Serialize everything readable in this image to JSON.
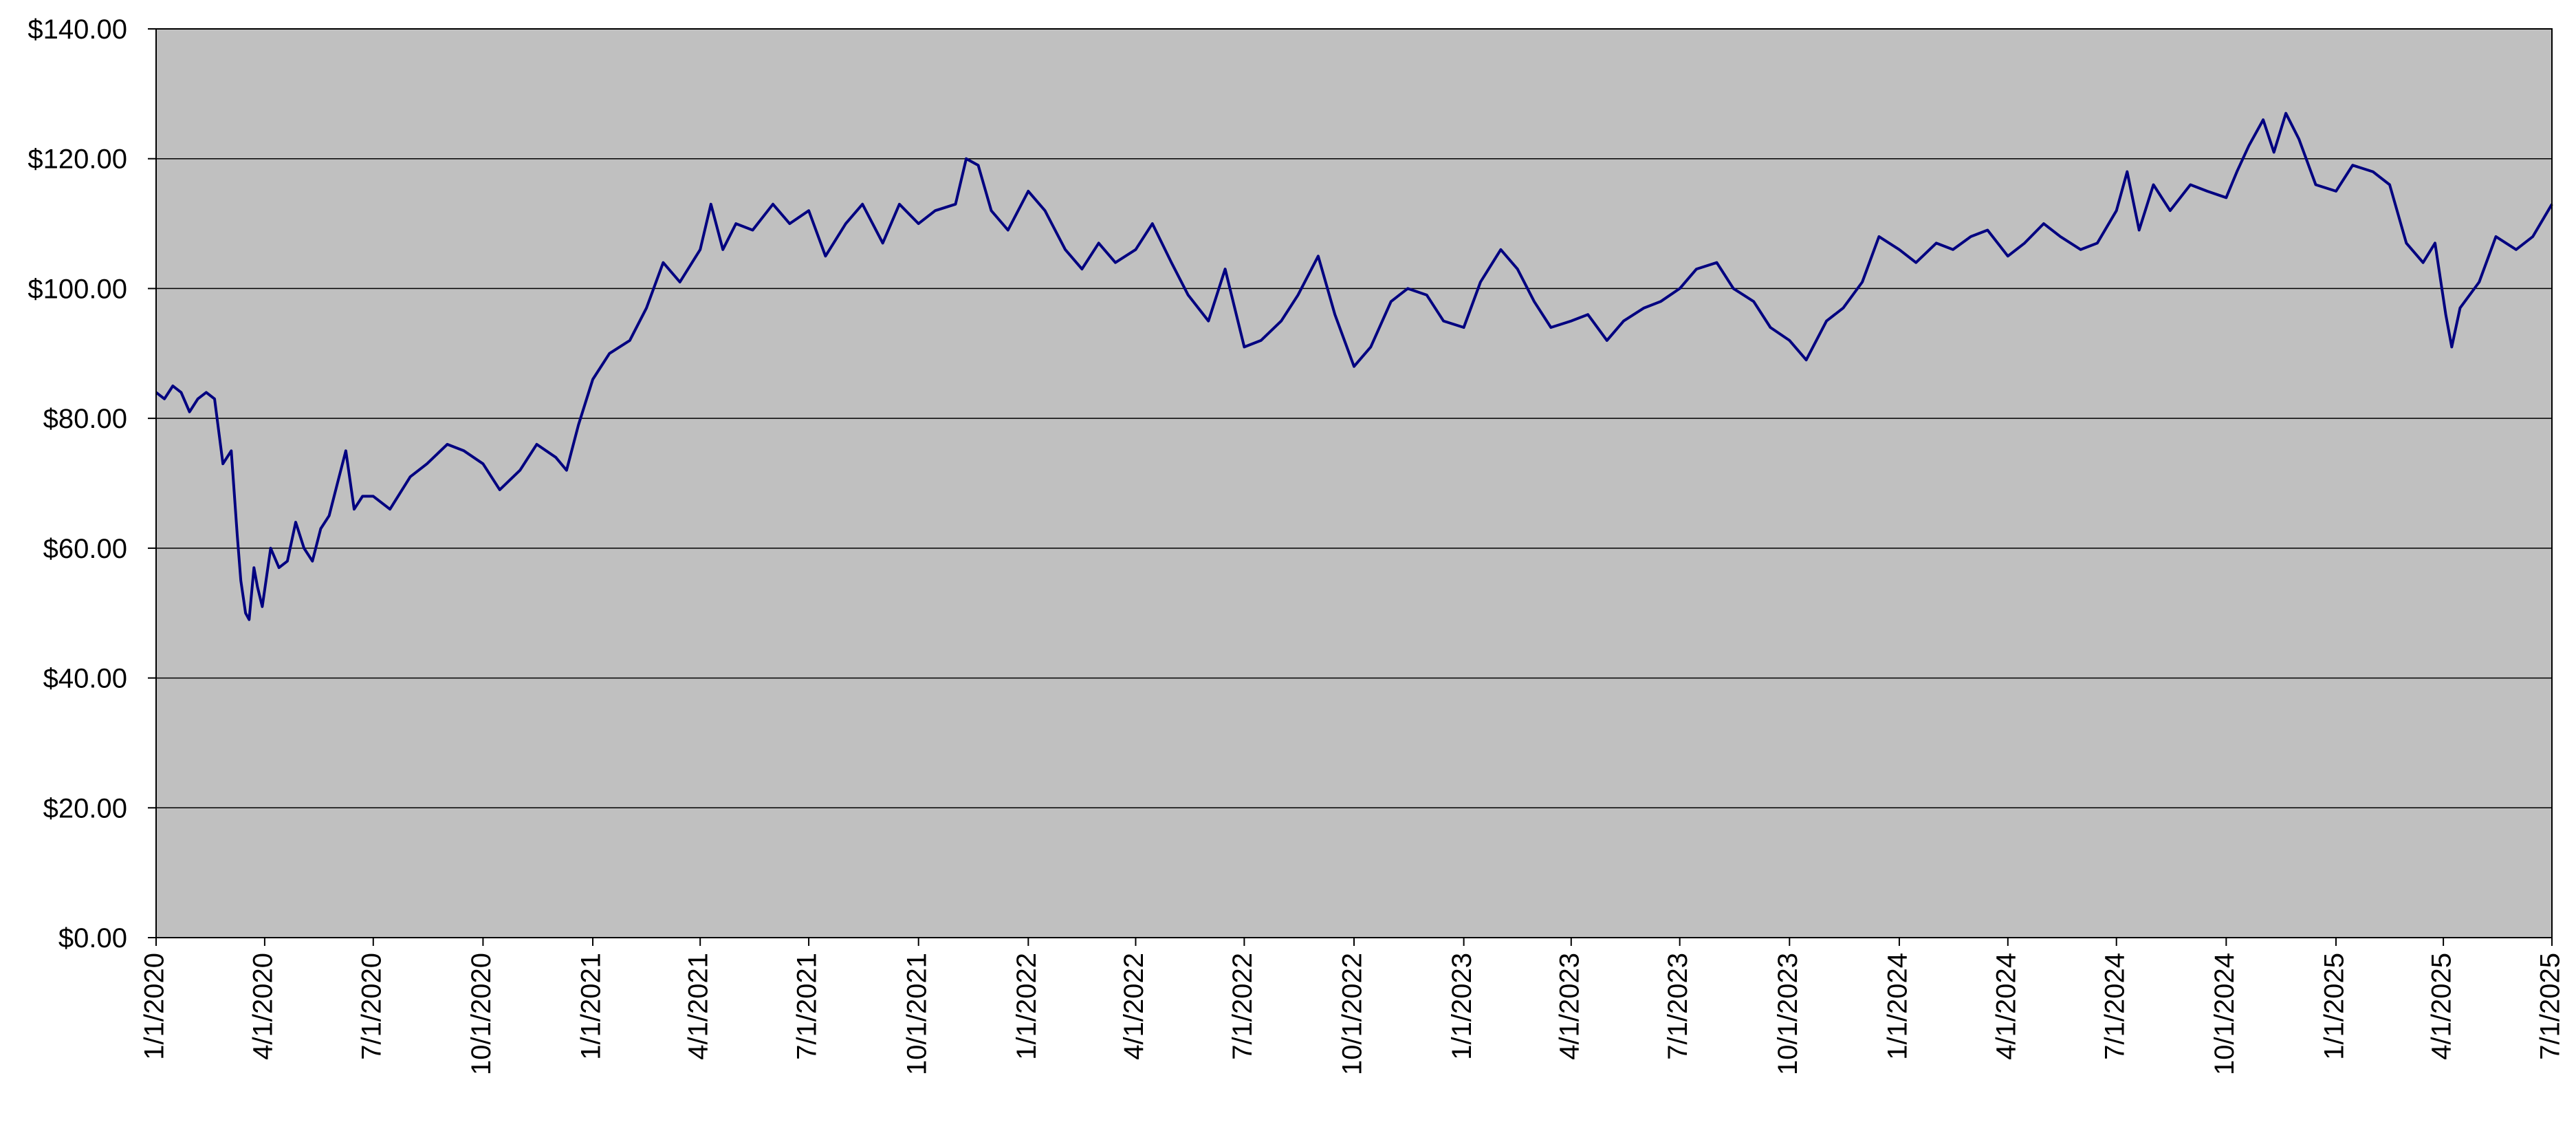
{
  "chart_data": {
    "type": "line",
    "title": "",
    "xlabel": "",
    "ylabel": "",
    "ylim": [
      0,
      140
    ],
    "y_ticks": [
      0,
      20,
      40,
      60,
      80,
      100,
      120,
      140
    ],
    "y_tick_labels": [
      "$0.00",
      "$20.00",
      "$40.00",
      "$60.00",
      "$80.00",
      "$100.00",
      "$120.00",
      "$140.00"
    ],
    "xlim": [
      "2020-01-01",
      "2025-07-01"
    ],
    "x_ticks": [
      "2020-01-01",
      "2020-04-01",
      "2020-07-01",
      "2020-10-01",
      "2021-01-01",
      "2021-04-01",
      "2021-07-01",
      "2021-10-01",
      "2022-01-01",
      "2022-04-01",
      "2022-07-01",
      "2022-10-01",
      "2023-01-01",
      "2023-04-01",
      "2023-07-01",
      "2023-10-01",
      "2024-01-01",
      "2024-04-01",
      "2024-07-01",
      "2024-10-01",
      "2025-01-01",
      "2025-04-01",
      "2025-07-01"
    ],
    "x_tick_labels": [
      "1/1/2020",
      "4/1/2020",
      "7/1/2020",
      "10/1/2020",
      "1/1/2021",
      "4/1/2021",
      "7/1/2021",
      "10/1/2021",
      "1/1/2022",
      "4/1/2022",
      "7/1/2022",
      "10/1/2022",
      "1/1/2023",
      "4/1/2023",
      "7/1/2023",
      "10/1/2023",
      "1/1/2024",
      "4/1/2024",
      "7/1/2024",
      "10/1/2024",
      "1/1/2025",
      "4/1/2025",
      "7/1/2025"
    ],
    "grid": "horizontal",
    "legend": "none",
    "colors": {
      "plot_bg": "#c0c0c0",
      "line": "#000080",
      "grid": "#000000",
      "axis": "#000000"
    },
    "series": [
      {
        "points": [
          [
            "2020-01-01",
            84
          ],
          [
            "2020-01-08",
            83
          ],
          [
            "2020-01-15",
            85
          ],
          [
            "2020-01-22",
            84
          ],
          [
            "2020-01-29",
            81
          ],
          [
            "2020-02-05",
            83
          ],
          [
            "2020-02-12",
            84
          ],
          [
            "2020-02-19",
            83
          ],
          [
            "2020-02-26",
            73
          ],
          [
            "2020-03-04",
            75
          ],
          [
            "2020-03-09",
            62
          ],
          [
            "2020-03-12",
            55
          ],
          [
            "2020-03-16",
            50
          ],
          [
            "2020-03-19",
            49
          ],
          [
            "2020-03-23",
            57
          ],
          [
            "2020-03-26",
            54
          ],
          [
            "2020-03-30",
            51
          ],
          [
            "2020-04-06",
            60
          ],
          [
            "2020-04-13",
            57
          ],
          [
            "2020-04-20",
            58
          ],
          [
            "2020-04-27",
            64
          ],
          [
            "2020-05-04",
            60
          ],
          [
            "2020-05-11",
            58
          ],
          [
            "2020-05-18",
            63
          ],
          [
            "2020-05-25",
            65
          ],
          [
            "2020-06-01",
            70
          ],
          [
            "2020-06-08",
            75
          ],
          [
            "2020-06-15",
            66
          ],
          [
            "2020-06-22",
            68
          ],
          [
            "2020-07-01",
            68
          ],
          [
            "2020-07-15",
            66
          ],
          [
            "2020-08-01",
            71
          ],
          [
            "2020-08-15",
            73
          ],
          [
            "2020-09-01",
            76
          ],
          [
            "2020-09-15",
            75
          ],
          [
            "2020-10-01",
            73
          ],
          [
            "2020-10-15",
            69
          ],
          [
            "2020-11-01",
            72
          ],
          [
            "2020-11-15",
            76
          ],
          [
            "2020-12-01",
            74
          ],
          [
            "2020-12-10",
            72
          ],
          [
            "2020-12-20",
            79
          ],
          [
            "2021-01-01",
            86
          ],
          [
            "2021-01-15",
            90
          ],
          [
            "2021-02-01",
            92
          ],
          [
            "2021-02-15",
            97
          ],
          [
            "2021-03-01",
            104
          ],
          [
            "2021-03-15",
            101
          ],
          [
            "2021-04-01",
            106
          ],
          [
            "2021-04-10",
            113
          ],
          [
            "2021-04-20",
            106
          ],
          [
            "2021-05-01",
            110
          ],
          [
            "2021-05-15",
            109
          ],
          [
            "2021-06-01",
            113
          ],
          [
            "2021-06-15",
            110
          ],
          [
            "2021-07-01",
            112
          ],
          [
            "2021-07-15",
            105
          ],
          [
            "2021-08-01",
            110
          ],
          [
            "2021-08-15",
            113
          ],
          [
            "2021-09-01",
            107
          ],
          [
            "2021-09-15",
            113
          ],
          [
            "2021-10-01",
            110
          ],
          [
            "2021-10-15",
            112
          ],
          [
            "2021-11-01",
            113
          ],
          [
            "2021-11-10",
            120
          ],
          [
            "2021-11-20",
            119
          ],
          [
            "2021-12-01",
            112
          ],
          [
            "2021-12-15",
            109
          ],
          [
            "2022-01-01",
            115
          ],
          [
            "2022-01-15",
            112
          ],
          [
            "2022-02-01",
            106
          ],
          [
            "2022-02-15",
            103
          ],
          [
            "2022-03-01",
            107
          ],
          [
            "2022-03-15",
            104
          ],
          [
            "2022-04-01",
            106
          ],
          [
            "2022-04-15",
            110
          ],
          [
            "2022-05-01",
            104
          ],
          [
            "2022-05-15",
            99
          ],
          [
            "2022-06-01",
            95
          ],
          [
            "2022-06-15",
            103
          ],
          [
            "2022-07-01",
            91
          ],
          [
            "2022-07-15",
            92
          ],
          [
            "2022-08-01",
            95
          ],
          [
            "2022-08-15",
            99
          ],
          [
            "2022-09-01",
            105
          ],
          [
            "2022-09-15",
            96
          ],
          [
            "2022-10-01",
            88
          ],
          [
            "2022-10-15",
            91
          ],
          [
            "2022-11-01",
            98
          ],
          [
            "2022-11-15",
            100
          ],
          [
            "2022-12-01",
            99
          ],
          [
            "2022-12-15",
            95
          ],
          [
            "2023-01-01",
            94
          ],
          [
            "2023-01-15",
            101
          ],
          [
            "2023-02-01",
            106
          ],
          [
            "2023-02-15",
            103
          ],
          [
            "2023-03-01",
            98
          ],
          [
            "2023-03-15",
            94
          ],
          [
            "2023-04-01",
            95
          ],
          [
            "2023-04-15",
            96
          ],
          [
            "2023-05-01",
            92
          ],
          [
            "2023-05-15",
            95
          ],
          [
            "2023-06-01",
            97
          ],
          [
            "2023-06-15",
            98
          ],
          [
            "2023-07-01",
            100
          ],
          [
            "2023-07-15",
            103
          ],
          [
            "2023-08-01",
            104
          ],
          [
            "2023-08-15",
            100
          ],
          [
            "2023-09-01",
            98
          ],
          [
            "2023-09-15",
            94
          ],
          [
            "2023-10-01",
            92
          ],
          [
            "2023-10-15",
            89
          ],
          [
            "2023-11-01",
            95
          ],
          [
            "2023-11-15",
            97
          ],
          [
            "2023-12-01",
            101
          ],
          [
            "2023-12-15",
            108
          ],
          [
            "2024-01-01",
            106
          ],
          [
            "2024-01-15",
            104
          ],
          [
            "2024-02-01",
            107
          ],
          [
            "2024-02-15",
            106
          ],
          [
            "2024-03-01",
            108
          ],
          [
            "2024-03-15",
            109
          ],
          [
            "2024-04-01",
            105
          ],
          [
            "2024-04-15",
            107
          ],
          [
            "2024-05-01",
            110
          ],
          [
            "2024-05-15",
            108
          ],
          [
            "2024-06-01",
            106
          ],
          [
            "2024-06-15",
            107
          ],
          [
            "2024-07-01",
            112
          ],
          [
            "2024-07-10",
            118
          ],
          [
            "2024-07-20",
            109
          ],
          [
            "2024-08-01",
            116
          ],
          [
            "2024-08-15",
            112
          ],
          [
            "2024-09-01",
            116
          ],
          [
            "2024-09-15",
            115
          ],
          [
            "2024-10-01",
            114
          ],
          [
            "2024-10-10",
            118
          ],
          [
            "2024-10-20",
            122
          ],
          [
            "2024-11-01",
            126
          ],
          [
            "2024-11-10",
            121
          ],
          [
            "2024-11-20",
            127
          ],
          [
            "2024-12-01",
            123
          ],
          [
            "2024-12-15",
            116
          ],
          [
            "2025-01-01",
            115
          ],
          [
            "2025-01-15",
            119
          ],
          [
            "2025-02-01",
            118
          ],
          [
            "2025-02-15",
            116
          ],
          [
            "2025-03-01",
            107
          ],
          [
            "2025-03-15",
            104
          ],
          [
            "2025-03-25",
            107
          ],
          [
            "2025-04-03",
            96
          ],
          [
            "2025-04-08",
            91
          ],
          [
            "2025-04-15",
            97
          ],
          [
            "2025-05-01",
            101
          ],
          [
            "2025-05-15",
            108
          ],
          [
            "2025-06-01",
            106
          ],
          [
            "2025-06-15",
            108
          ],
          [
            "2025-07-01",
            113
          ]
        ]
      }
    ]
  }
}
